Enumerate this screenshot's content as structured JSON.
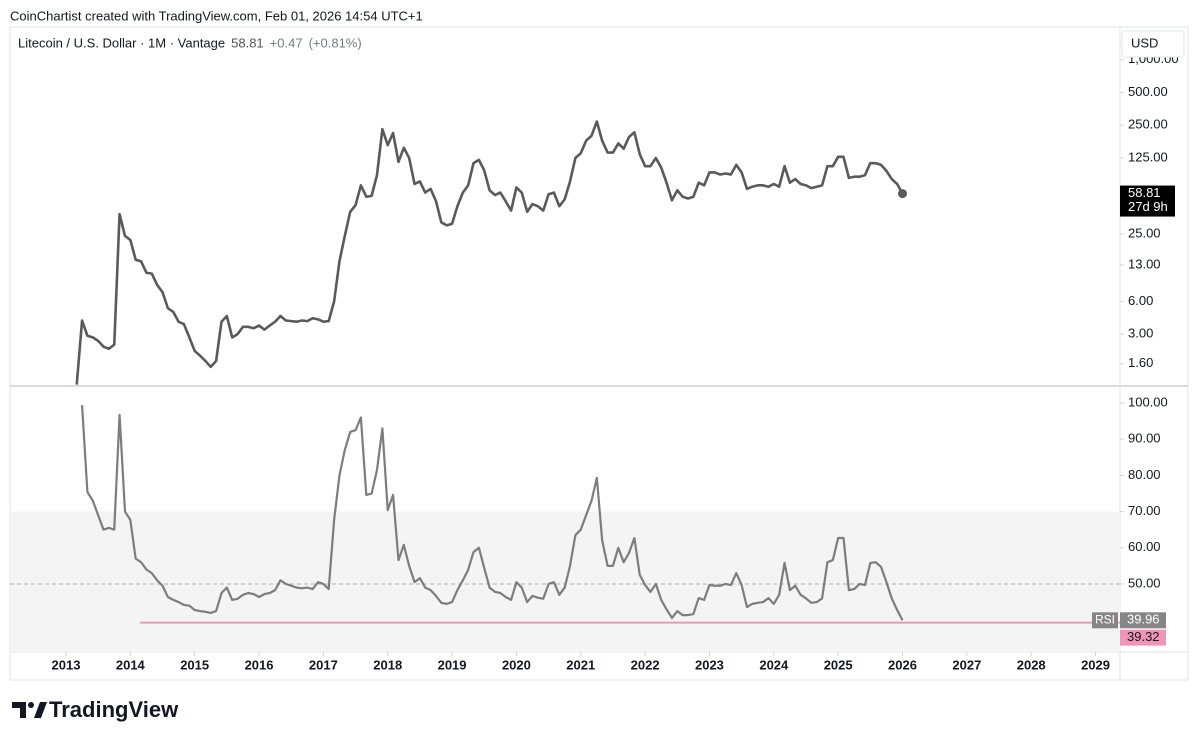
{
  "header": "CoinChartist created with TradingView.com, Feb 01, 2026 14:54 UTC+1",
  "brand": "TradingView",
  "chart_data": {
    "type": "line",
    "currency": "USD",
    "change": "+0.47",
    "change_pct": "(+0.81%)",
    "countdown": "27d 9h",
    "xlim": [
      2012.13,
      2029.38
    ],
    "xticks": [
      2013,
      2014,
      2015,
      2016,
      2017,
      2018,
      2019,
      2020,
      2021,
      2022,
      2023,
      2024,
      2025,
      2026,
      2027,
      2028,
      2029
    ],
    "x": [
      2013.167,
      2013.25,
      2013.333,
      2013.417,
      2013.5,
      2013.583,
      2013.667,
      2013.75,
      2013.833,
      2013.917,
      2014,
      2014.083,
      2014.167,
      2014.25,
      2014.333,
      2014.417,
      2014.5,
      2014.583,
      2014.667,
      2014.75,
      2014.833,
      2014.917,
      2015,
      2015.083,
      2015.167,
      2015.25,
      2015.333,
      2015.417,
      2015.5,
      2015.583,
      2015.667,
      2015.75,
      2015.833,
      2015.917,
      2016,
      2016.083,
      2016.167,
      2016.25,
      2016.333,
      2016.417,
      2016.5,
      2016.583,
      2016.667,
      2016.75,
      2016.833,
      2016.917,
      2017,
      2017.083,
      2017.167,
      2017.25,
      2017.333,
      2017.417,
      2017.5,
      2017.583,
      2017.667,
      2017.75,
      2017.833,
      2017.917,
      2018,
      2018.083,
      2018.167,
      2018.25,
      2018.333,
      2018.417,
      2018.5,
      2018.583,
      2018.667,
      2018.75,
      2018.833,
      2018.917,
      2019,
      2019.083,
      2019.167,
      2019.25,
      2019.333,
      2019.417,
      2019.5,
      2019.583,
      2019.667,
      2019.75,
      2019.833,
      2019.917,
      2020,
      2020.083,
      2020.167,
      2020.25,
      2020.333,
      2020.417,
      2020.5,
      2020.583,
      2020.667,
      2020.75,
      2020.833,
      2020.917,
      2021,
      2021.083,
      2021.167,
      2021.25,
      2021.333,
      2021.417,
      2021.5,
      2021.583,
      2021.667,
      2021.75,
      2021.833,
      2021.917,
      2022,
      2022.083,
      2022.167,
      2022.25,
      2022.333,
      2022.417,
      2022.5,
      2022.583,
      2022.667,
      2022.75,
      2022.833,
      2022.917,
      2023,
      2023.083,
      2023.167,
      2023.25,
      2023.333,
      2023.417,
      2023.5,
      2023.583,
      2023.667,
      2023.75,
      2023.833,
      2023.917,
      2024,
      2024.083,
      2024.167,
      2024.25,
      2024.333,
      2024.417,
      2024.5,
      2024.583,
      2024.667,
      2024.75,
      2024.833,
      2024.917,
      2025,
      2025.083,
      2025.167,
      2025.25,
      2025.333,
      2025.417,
      2025.5,
      2025.583,
      2025.667,
      2025.75,
      2025.833,
      2025.917,
      2026
    ],
    "series": [
      {
        "name": "Litecoin / U.S. Dollar · 1M · Vantage",
        "color": "#5a5a5a",
        "log": true,
        "ylim": [
          1,
          2000
        ],
        "yticks": [
          {
            "value": 1.6,
            "label": "1.60"
          },
          {
            "value": 3,
            "label": "3.00"
          },
          {
            "value": 6,
            "label": "6.00"
          },
          {
            "value": 13,
            "label": "13.00"
          },
          {
            "value": 25,
            "label": "25.00"
          },
          {
            "value": 125,
            "label": "125.00"
          },
          {
            "value": 250,
            "label": "250.00"
          },
          {
            "value": 500,
            "label": "500.00"
          },
          {
            "value": 1000,
            "label": "1,000.00"
          }
        ],
        "values": [
          1.03,
          4.0,
          2.9,
          2.8,
          2.6,
          2.3,
          2.2,
          2.4,
          38,
          24,
          22,
          14.5,
          14,
          11,
          10.8,
          8.5,
          7.3,
          5.2,
          4.8,
          3.9,
          3.7,
          2.8,
          2.1,
          1.9,
          1.7,
          1.5,
          1.7,
          3.9,
          4.4,
          2.8,
          3.0,
          3.5,
          3.5,
          3.4,
          3.6,
          3.3,
          3.6,
          3.9,
          4.4,
          4.0,
          3.95,
          3.9,
          4.0,
          3.95,
          4.2,
          4.1,
          3.9,
          3.95,
          6.0,
          14,
          24,
          40,
          46,
          70,
          55,
          56,
          87,
          230,
          164,
          212,
          115,
          155,
          125,
          72,
          76,
          60,
          65,
          50,
          32,
          30,
          31,
          45,
          60,
          70,
          112,
          120,
          96,
          63,
          57,
          60,
          50,
          41,
          67,
          60,
          40,
          47,
          45,
          41,
          58,
          60,
          45,
          52,
          76,
          125,
          138,
          180,
          200,
          270,
          180,
          140,
          140,
          170,
          152,
          195,
          215,
          135,
          105,
          105,
          125,
          102,
          74,
          51,
          63,
          55,
          53,
          55,
          74,
          70,
          92,
          92,
          88,
          90,
          88,
          108,
          92,
          65,
          68,
          70,
          70,
          68,
          72,
          68,
          105,
          74,
          80,
          72,
          70,
          66,
          68,
          70,
          105,
          105,
          128,
          128,
          82,
          84,
          84,
          87,
          112,
          112,
          108,
          95,
          80,
          72,
          58.81
        ]
      },
      {
        "name": "RSI",
        "color": "#7d7d7d",
        "ylim": [
          31.2,
          104.7
        ],
        "yticks": [
          {
            "value": 50,
            "label": "50.00"
          },
          {
            "value": 60,
            "label": "60.00"
          },
          {
            "value": 70,
            "label": "70.00"
          },
          {
            "value": 80,
            "label": "80.00"
          },
          {
            "value": 90,
            "label": "90.00"
          },
          {
            "value": 100,
            "label": "100.00"
          }
        ],
        "band": [
          30,
          70
        ],
        "midline": 50,
        "support": {
          "value": 39.32,
          "from": 2014.15
        },
        "values": [
          null,
          99.4,
          75.4,
          73,
          69,
          65,
          65.5,
          65,
          96.7,
          70,
          67.7,
          57,
          56,
          54,
          53,
          51,
          49.5,
          46.4,
          45.6,
          45,
          44.2,
          44,
          42.8,
          42.5,
          42.3,
          42,
          42.5,
          47.5,
          49,
          45.6,
          45.9,
          47,
          47.5,
          47.2,
          46.4,
          47.2,
          47.5,
          48.3,
          51,
          50,
          49.5,
          49,
          48.8,
          49,
          48.6,
          50.5,
          50,
          48.6,
          67.7,
          80,
          87,
          92,
          92.5,
          96,
          74.6,
          75,
          81.5,
          93,
          70.4,
          74.6,
          56.6,
          60.8,
          55,
          50.5,
          51.6,
          49,
          48.3,
          46.7,
          44.8,
          44.5,
          45,
          48.3,
          51,
          53.9,
          58.8,
          60,
          54.4,
          49,
          47.8,
          47.5,
          46.4,
          45.6,
          50.5,
          49,
          45,
          46.7,
          46.2,
          45.9,
          50,
          50.5,
          47,
          49,
          55,
          63.5,
          65,
          69,
          73,
          79.3,
          62,
          55,
          55,
          60,
          56,
          58.6,
          62.7,
          52.5,
          49.7,
          47.8,
          50,
          45.6,
          43,
          40.6,
          42.5,
          41.4,
          41.4,
          41.7,
          46.1,
          45.6,
          49.7,
          49.5,
          49.5,
          50,
          49.7,
          53,
          49.7,
          43.6,
          44.5,
          44.8,
          45,
          46.1,
          44.5,
          47,
          55.8,
          48.3,
          49.5,
          47,
          46,
          44.8,
          45,
          46,
          56,
          56.6,
          62.7,
          62.7,
          48.3,
          48.6,
          50,
          49.7,
          55.8,
          56,
          54.7,
          50.5,
          46,
          42.8,
          39.96
        ]
      }
    ]
  }
}
